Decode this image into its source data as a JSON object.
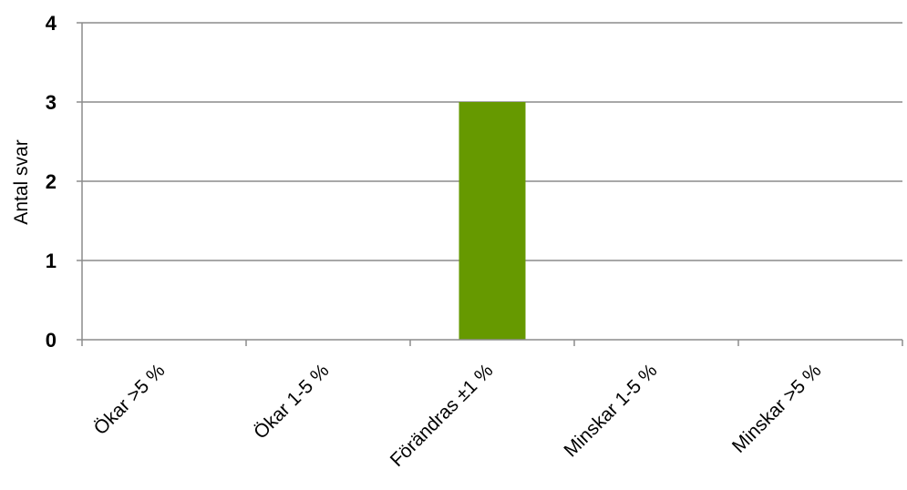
{
  "chart_data": {
    "type": "bar",
    "title": "",
    "xlabel": "",
    "ylabel": "Antal svar",
    "categories": [
      "Ökar >5 %",
      "Ökar 1-5 %",
      "Förändras ±1 %",
      "Minskar 1-5 %",
      "Minskar >5 %"
    ],
    "values": [
      0,
      0,
      3,
      0,
      0
    ],
    "ylim": [
      0,
      4
    ],
    "yticks": [
      0,
      1,
      2,
      3,
      4
    ],
    "grid": true,
    "legend": "none",
    "bar_color": "#669900",
    "grid_color": "#8c8c8c",
    "axis_color": "#8c8c8c",
    "text_color": "#000000"
  }
}
